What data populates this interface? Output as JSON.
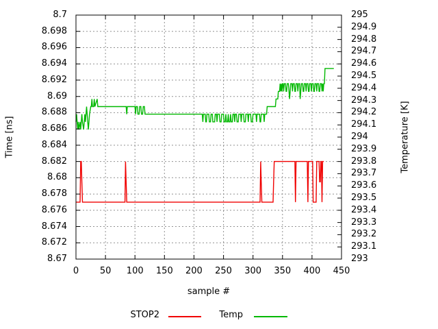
{
  "chart_data": {
    "type": "line",
    "title": "",
    "xlabel": "sample #",
    "ylabel_left": "Time [ns]",
    "ylabel_right": "Temperature [K]",
    "grid": true,
    "legend_position": "bottom",
    "colors": {
      "grid": "#909090",
      "frame": "#000000",
      "background": "#ffffff",
      "stop2": "#f00000",
      "temp": "#00b800"
    },
    "axes": {
      "x": {
        "min": 0,
        "max": 450,
        "ticks": [
          [
            0,
            "0"
          ],
          [
            50,
            "50"
          ],
          [
            100,
            "100"
          ],
          [
            150,
            "150"
          ],
          [
            200,
            "200"
          ],
          [
            250,
            "250"
          ],
          [
            300,
            "300"
          ],
          [
            350,
            "350"
          ],
          [
            400,
            "400"
          ],
          [
            450,
            "450"
          ]
        ]
      },
      "y_left": {
        "min": 8.67,
        "max": 8.7,
        "ticks": [
          [
            8.7,
            "8.7"
          ],
          [
            8.698,
            "8.698"
          ],
          [
            8.696,
            "8.696"
          ],
          [
            8.694,
            "8.694"
          ],
          [
            8.692,
            "8.692"
          ],
          [
            8.69,
            "8.69"
          ],
          [
            8.688,
            "8.688"
          ],
          [
            8.686,
            "8.686"
          ],
          [
            8.684,
            "8.684"
          ],
          [
            8.682,
            "8.682"
          ],
          [
            8.68,
            "8.68"
          ],
          [
            8.678,
            "8.678"
          ],
          [
            8.676,
            "8.676"
          ],
          [
            8.674,
            "8.674"
          ],
          [
            8.672,
            "8.672"
          ],
          [
            8.67,
            "8.67"
          ]
        ]
      },
      "y_right": {
        "min": 293,
        "max": 295,
        "ticks": [
          [
            295,
            "295"
          ],
          [
            294.9,
            "294.9"
          ],
          [
            294.8,
            "294.8"
          ],
          [
            294.7,
            "294.7"
          ],
          [
            294.6,
            "294.6"
          ],
          [
            294.5,
            "294.5"
          ],
          [
            294.4,
            "294.4"
          ],
          [
            294.3,
            "294.3"
          ],
          [
            294.2,
            "294.2"
          ],
          [
            294.1,
            "294.1"
          ],
          [
            294,
            "294"
          ],
          [
            293.9,
            "293.9"
          ],
          [
            293.8,
            "293.8"
          ],
          [
            293.7,
            "293.7"
          ],
          [
            293.6,
            "293.6"
          ],
          [
            293.5,
            "293.5"
          ],
          [
            293.4,
            "293.4"
          ],
          [
            293.3,
            "293.3"
          ],
          [
            293.2,
            "293.2"
          ],
          [
            293.1,
            "293.1"
          ],
          [
            293,
            "293"
          ]
        ]
      }
    },
    "series": [
      {
        "name": "STOP2",
        "axis": "left",
        "color": "#f00000",
        "points": [
          [
            0,
            8.677
          ],
          [
            7,
            8.677
          ],
          [
            8,
            8.682
          ],
          [
            9,
            8.682
          ],
          [
            10,
            8.6795
          ],
          [
            11,
            8.677
          ],
          [
            83,
            8.677
          ],
          [
            84,
            8.682
          ],
          [
            85,
            8.6795
          ],
          [
            86,
            8.677
          ],
          [
            312,
            8.677
          ],
          [
            313,
            8.682
          ],
          [
            314,
            8.6795
          ],
          [
            315,
            8.677
          ],
          [
            334,
            8.677
          ],
          [
            335,
            8.6795
          ],
          [
            336,
            8.682
          ],
          [
            371,
            8.682
          ],
          [
            372,
            8.677
          ],
          [
            373,
            8.682
          ],
          [
            392,
            8.682
          ],
          [
            393,
            8.677
          ],
          [
            394,
            8.682
          ],
          [
            401,
            8.682
          ],
          [
            402,
            8.677
          ],
          [
            407,
            8.677
          ],
          [
            408,
            8.682
          ],
          [
            412,
            8.682
          ],
          [
            413,
            8.6795
          ],
          [
            414,
            8.6795
          ],
          [
            415,
            8.682
          ],
          [
            416,
            8.682
          ],
          [
            417,
            8.677
          ],
          [
            418,
            8.682
          ],
          [
            420,
            8.682
          ]
        ]
      },
      {
        "name": "Temp",
        "axis": "right",
        "color": "#00b800",
        "points": [
          [
            0,
            294.125
          ],
          [
            1,
            294.1875
          ],
          [
            2,
            294.125
          ],
          [
            3,
            294.0625
          ],
          [
            4,
            294.125
          ],
          [
            5,
            294.0625
          ],
          [
            7,
            294.125
          ],
          [
            8,
            294.0625
          ],
          [
            9,
            294.125
          ],
          [
            10,
            294.1875
          ],
          [
            11,
            294.125
          ],
          [
            13,
            294.0625
          ],
          [
            14,
            294.125
          ],
          [
            15,
            294.1875
          ],
          [
            16,
            294.125
          ],
          [
            17,
            294.1875
          ],
          [
            18,
            294.25
          ],
          [
            19,
            294.1875
          ],
          [
            20,
            294.125
          ],
          [
            21,
            294.0625
          ],
          [
            22,
            294.125
          ],
          [
            23,
            294.1875
          ],
          [
            25,
            294.25
          ],
          [
            26,
            294.25
          ],
          [
            27,
            294.3125
          ],
          [
            28,
            294.25
          ],
          [
            30,
            294.25
          ],
          [
            31,
            294.3125
          ],
          [
            32,
            294.25
          ],
          [
            36,
            294.3125
          ],
          [
            37,
            294.25
          ],
          [
            85,
            294.25
          ],
          [
            86,
            294.1875
          ],
          [
            87,
            294.25
          ],
          [
            100,
            294.25
          ],
          [
            101,
            294.1875
          ],
          [
            102,
            294.25
          ],
          [
            104,
            294.25
          ],
          [
            105,
            294.1875
          ],
          [
            107,
            294.1875
          ],
          [
            108,
            294.25
          ],
          [
            110,
            294.25
          ],
          [
            111,
            294.1875
          ],
          [
            113,
            294.1875
          ],
          [
            114,
            294.25
          ],
          [
            116,
            294.25
          ],
          [
            117,
            294.1875
          ],
          [
            214,
            294.1875
          ],
          [
            215,
            294.125
          ],
          [
            216,
            294.1875
          ],
          [
            219,
            294.1875
          ],
          [
            220,
            294.125
          ],
          [
            221,
            294.125
          ],
          [
            222,
            294.1875
          ],
          [
            225,
            294.1875
          ],
          [
            226,
            294.125
          ],
          [
            228,
            294.125
          ],
          [
            229,
            294.1875
          ],
          [
            231,
            294.1875
          ],
          [
            232,
            294.125
          ],
          [
            235,
            294.125
          ],
          [
            236,
            294.1875
          ],
          [
            238,
            294.1875
          ],
          [
            239,
            294.125
          ],
          [
            240,
            294.1875
          ],
          [
            243,
            294.1875
          ],
          [
            244,
            294.125
          ],
          [
            246,
            294.125
          ],
          [
            247,
            294.1875
          ],
          [
            250,
            294.1875
          ],
          [
            251,
            294.125
          ],
          [
            253,
            294.125
          ],
          [
            254,
            294.1875
          ],
          [
            255,
            294.125
          ],
          [
            257,
            294.125
          ],
          [
            258,
            294.1875
          ],
          [
            259,
            294.125
          ],
          [
            261,
            294.125
          ],
          [
            262,
            294.1875
          ],
          [
            263,
            294.125
          ],
          [
            265,
            294.125
          ],
          [
            266,
            294.1875
          ],
          [
            268,
            294.1875
          ],
          [
            269,
            294.125
          ],
          [
            270,
            294.1875
          ],
          [
            272,
            294.1875
          ],
          [
            273,
            294.125
          ],
          [
            275,
            294.125
          ],
          [
            276,
            294.1875
          ],
          [
            279,
            294.1875
          ],
          [
            280,
            294.125
          ],
          [
            281,
            294.1875
          ],
          [
            284,
            294.1875
          ],
          [
            285,
            294.125
          ],
          [
            287,
            294.125
          ],
          [
            288,
            294.1875
          ],
          [
            291,
            294.1875
          ],
          [
            292,
            294.125
          ],
          [
            293,
            294.1875
          ],
          [
            296,
            294.1875
          ],
          [
            297,
            294.125
          ],
          [
            299,
            294.125
          ],
          [
            300,
            294.1875
          ],
          [
            305,
            294.1875
          ],
          [
            306,
            294.125
          ],
          [
            307,
            294.1875
          ],
          [
            311,
            294.1875
          ],
          [
            312,
            294.125
          ],
          [
            313,
            294.125
          ],
          [
            314,
            294.1875
          ],
          [
            318,
            294.1875
          ],
          [
            319,
            294.125
          ],
          [
            320,
            294.1875
          ],
          [
            323,
            294.1875
          ],
          [
            324,
            294.25
          ],
          [
            338,
            294.25
          ],
          [
            339,
            294.3125
          ],
          [
            342,
            294.3125
          ],
          [
            343,
            294.375
          ],
          [
            345,
            294.375
          ],
          [
            346,
            294.4375
          ],
          [
            347,
            294.375
          ],
          [
            348,
            294.4375
          ],
          [
            349,
            294.375
          ],
          [
            350,
            294.4375
          ],
          [
            351,
            294.4375
          ],
          [
            352,
            294.375
          ],
          [
            353,
            294.4375
          ],
          [
            355,
            294.4375
          ],
          [
            356,
            294.375
          ],
          [
            357,
            294.375
          ],
          [
            358,
            294.4375
          ],
          [
            360,
            294.4375
          ],
          [
            361,
            294.375
          ],
          [
            362,
            294.3125
          ],
          [
            363,
            294.375
          ],
          [
            364,
            294.4375
          ],
          [
            366,
            294.4375
          ],
          [
            367,
            294.375
          ],
          [
            368,
            294.4375
          ],
          [
            370,
            294.4375
          ],
          [
            371,
            294.375
          ],
          [
            372,
            294.375
          ],
          [
            373,
            294.4375
          ],
          [
            375,
            294.4375
          ],
          [
            376,
            294.375
          ],
          [
            377,
            294.4375
          ],
          [
            379,
            294.4375
          ],
          [
            380,
            294.3125
          ],
          [
            381,
            294.375
          ],
          [
            382,
            294.4375
          ],
          [
            384,
            294.4375
          ],
          [
            385,
            294.375
          ],
          [
            386,
            294.375
          ],
          [
            387,
            294.4375
          ],
          [
            389,
            294.4375
          ],
          [
            390,
            294.375
          ],
          [
            391,
            294.4375
          ],
          [
            393,
            294.4375
          ],
          [
            394,
            294.375
          ],
          [
            395,
            294.375
          ],
          [
            396,
            294.4375
          ],
          [
            398,
            294.4375
          ],
          [
            399,
            294.375
          ],
          [
            400,
            294.4375
          ],
          [
            402,
            294.4375
          ],
          [
            403,
            294.375
          ],
          [
            404,
            294.375
          ],
          [
            405,
            294.4375
          ],
          [
            407,
            294.4375
          ],
          [
            408,
            294.375
          ],
          [
            409,
            294.4375
          ],
          [
            411,
            294.4375
          ],
          [
            412,
            294.375
          ],
          [
            413,
            294.375
          ],
          [
            414,
            294.4375
          ],
          [
            416,
            294.4375
          ],
          [
            417,
            294.375
          ],
          [
            418,
            294.4375
          ],
          [
            419,
            294.375
          ],
          [
            420,
            294.4375
          ],
          [
            421,
            294.4375
          ],
          [
            422,
            294.5625
          ],
          [
            437,
            294.5625
          ]
        ]
      }
    ]
  }
}
